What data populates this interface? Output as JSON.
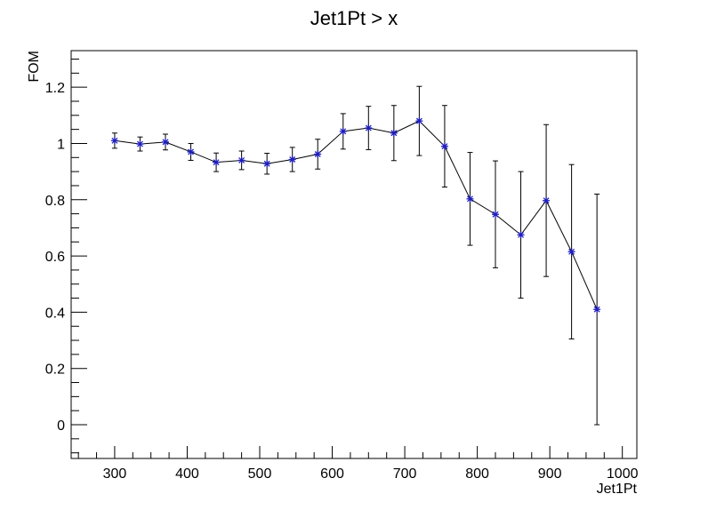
{
  "chart_data": {
    "type": "scatter",
    "title": "Jet1Pt > x",
    "xlabel": "Jet1Pt",
    "ylabel": "FOM",
    "xlim": [
      240,
      1020
    ],
    "ylim": [
      -0.12,
      1.33
    ],
    "xticks": [
      300,
      400,
      500,
      600,
      700,
      800,
      900,
      1000
    ],
    "xtick_labels": [
      "300",
      "400",
      "500",
      "600",
      "700",
      "800",
      "900",
      "1000"
    ],
    "yticks": [
      0,
      0.2,
      0.4,
      0.6,
      0.8,
      1,
      1.2
    ],
    "ytick_labels": [
      "0",
      "0.2",
      "0.4",
      "0.6",
      "0.8",
      "1",
      "1.2"
    ],
    "grid": false,
    "marker_color": "#1f1fbf",
    "line_color": "#000000",
    "series": [
      {
        "x": [
          300,
          335,
          370,
          405,
          440,
          475,
          510,
          545,
          580,
          615,
          650,
          685,
          720,
          755,
          790,
          825,
          860,
          895,
          930,
          965
        ],
        "y": [
          1.01,
          0.998,
          1.005,
          0.97,
          0.933,
          0.94,
          0.928,
          0.943,
          0.962,
          1.043,
          1.055,
          1.037,
          1.08,
          0.99,
          0.803,
          0.748,
          0.675,
          0.797,
          0.615,
          0.41
        ],
        "err": [
          0.027,
          0.025,
          0.028,
          0.03,
          0.033,
          0.033,
          0.037,
          0.043,
          0.053,
          0.063,
          0.077,
          0.098,
          0.123,
          0.145,
          0.165,
          0.19,
          0.225,
          0.27,
          0.31,
          0.41
        ]
      }
    ]
  }
}
